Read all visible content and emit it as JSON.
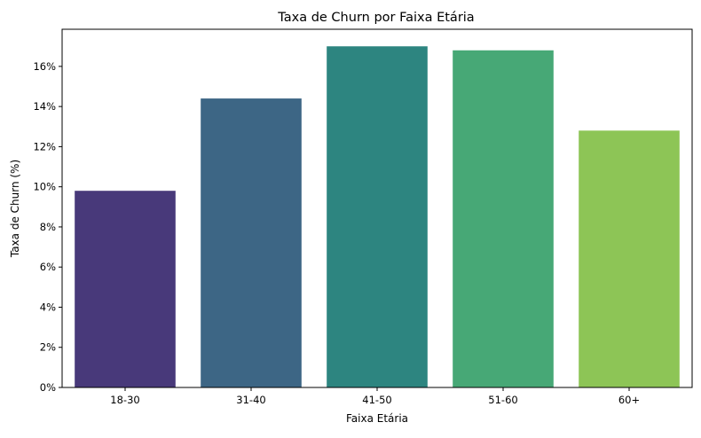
{
  "chart_data": {
    "type": "bar",
    "title": "Taxa de Churn por Faixa Etária",
    "xlabel": "Faixa Etária",
    "ylabel": "Taxa de Churn (%)",
    "categories": [
      "18-30",
      "31-40",
      "41-50",
      "51-60",
      "60+"
    ],
    "values": [
      9.8,
      14.4,
      17.0,
      16.8,
      12.8
    ],
    "colors": [
      "#48397a",
      "#3d6685",
      "#2d8580",
      "#47a876",
      "#8dc556"
    ],
    "ylim": [
      0,
      17.85
    ],
    "yticks": [
      0,
      2,
      4,
      6,
      8,
      10,
      12,
      14,
      16
    ],
    "ytick_labels": [
      "0%",
      "2%",
      "4%",
      "6%",
      "8%",
      "10%",
      "12%",
      "14%",
      "16%"
    ],
    "grid": false,
    "legend": "none"
  }
}
